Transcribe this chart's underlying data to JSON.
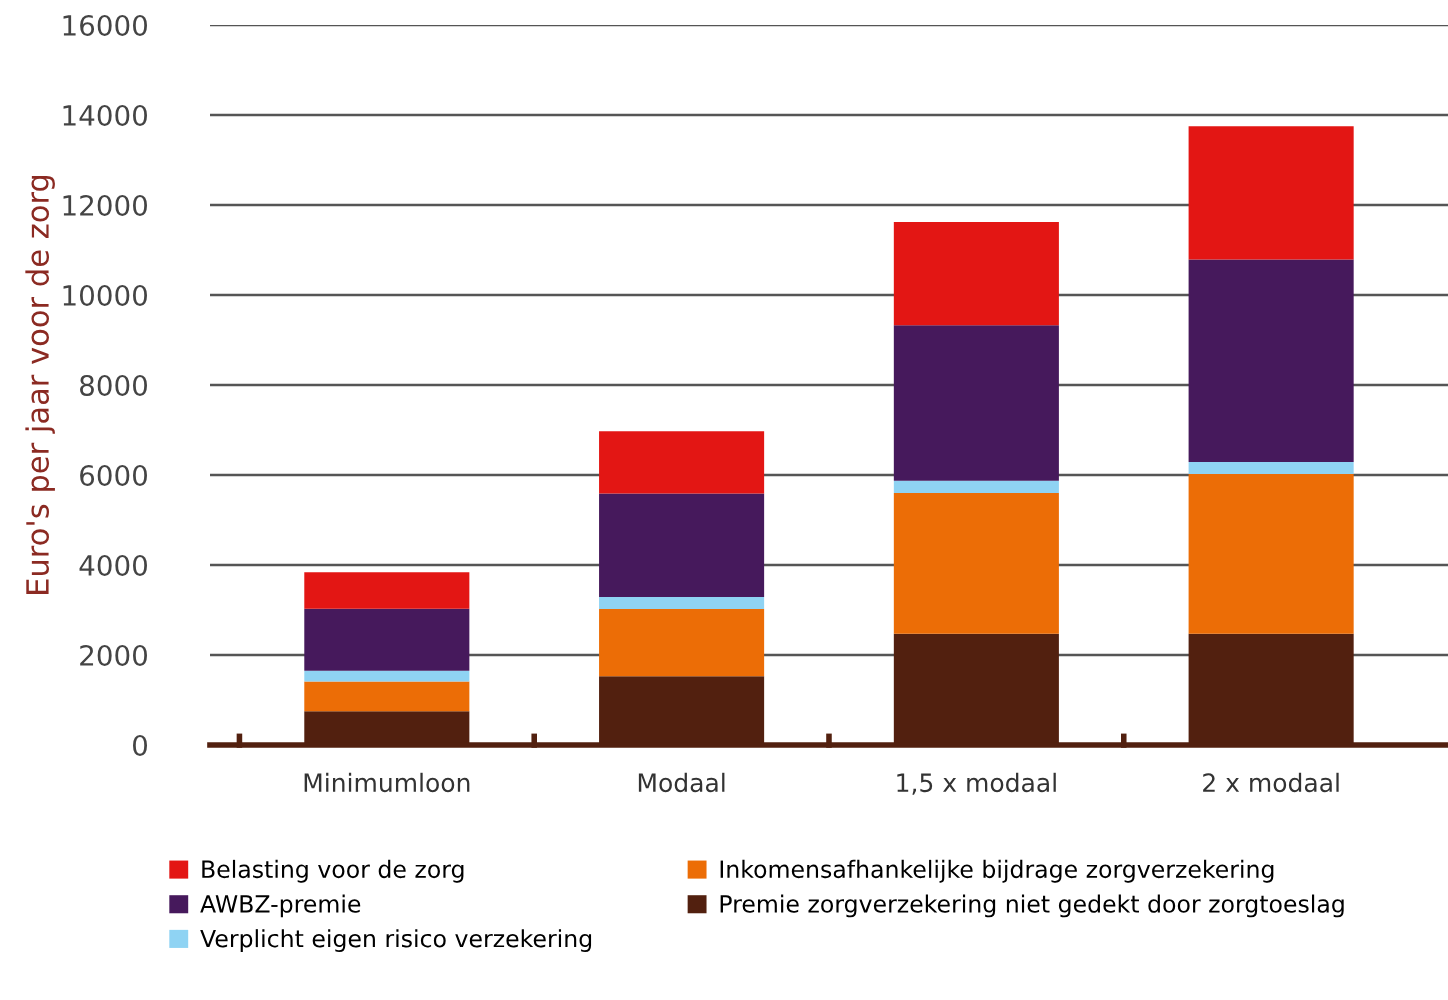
{
  "chart_data": {
    "type": "bar",
    "stacked": true,
    "ylabel": "Euro's per jaar voor de zorg",
    "categories": [
      "Minimumloon",
      "Modaal",
      "1,5 x modaal",
      "2 x modaal"
    ],
    "series": [
      {
        "name": "Premie zorgverzekering niet gedekt door zorgtoeslag",
        "color": "#52200f",
        "values": [
          750,
          1530,
          2470,
          2470
        ]
      },
      {
        "name": "Inkomensafhankelijke bijdrage zorgverzekering",
        "color": "#ec6d06",
        "values": [
          660,
          1490,
          3130,
          3550
        ]
      },
      {
        "name": "Verplicht eigen risico verzekering",
        "color": "#8fd3f3",
        "values": [
          240,
          270,
          270,
          270
        ]
      },
      {
        "name": "AWBZ-premie",
        "color": "#46195c",
        "values": [
          1380,
          2300,
          3460,
          4500
        ]
      },
      {
        "name": "Belasting voor de zorg",
        "color": "#e31614",
        "values": [
          810,
          1380,
          2290,
          2960
        ]
      }
    ],
    "ylim": [
      0,
      16000
    ],
    "yticks": [
      0,
      2000,
      4000,
      6000,
      8000,
      10000,
      12000,
      14000,
      16000
    ],
    "grid": "y",
    "legend": "bottom"
  }
}
